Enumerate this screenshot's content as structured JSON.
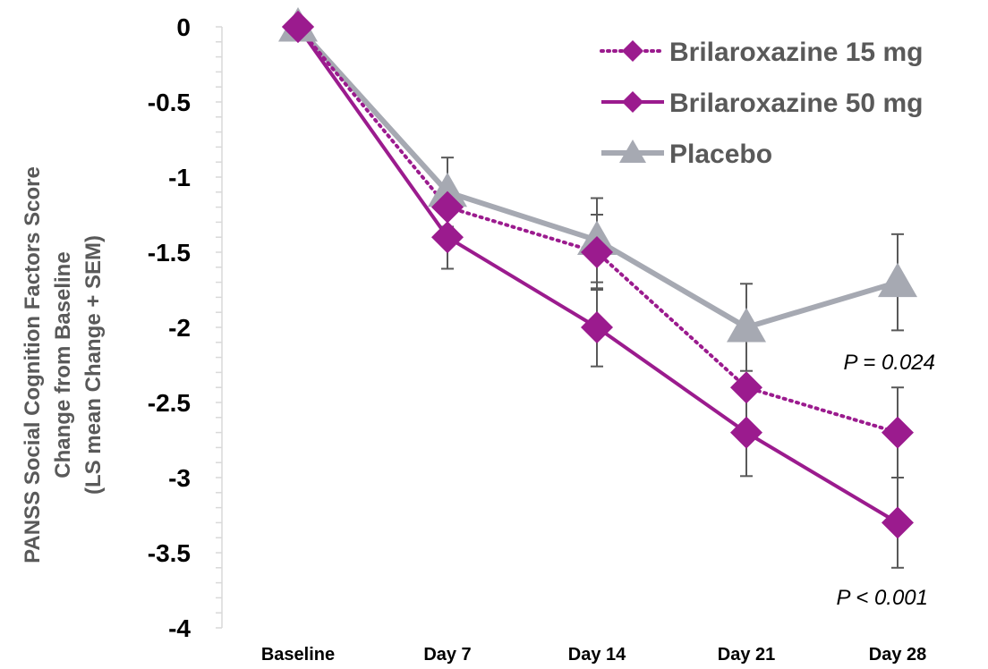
{
  "chart_data": {
    "type": "line",
    "title": "",
    "ylabel_lines": [
      "PANSS Social Cognition Factors Score",
      "Change from Baseline",
      "(LS mean Change + SEM)"
    ],
    "xlabel": "",
    "categories": [
      "Baseline",
      "Day 7",
      "Day 14",
      "Day 21",
      "Day 28"
    ],
    "ylim": [
      -4,
      0
    ],
    "yticks": [
      0,
      -0.5,
      -1,
      -1.5,
      -2,
      -2.5,
      -3,
      -3.5,
      -4
    ],
    "ytick_labels": [
      "0",
      "-0.5",
      "-1",
      "-1.5",
      "-2",
      "-2.5",
      "-3",
      "-3.5",
      "-4"
    ],
    "grid": false,
    "legend_position": "top-right",
    "series": [
      {
        "name": "Brilaroxazine 15 mg",
        "key": "b15",
        "color": "#9B1B8E",
        "line_style": "dotted",
        "marker": "diamond",
        "values": [
          0,
          -1.2,
          -1.5,
          -2.4,
          -2.7
        ],
        "error": [
          null,
          null,
          0.25,
          null,
          0.3
        ]
      },
      {
        "name": "Brilaroxazine 50 mg",
        "key": "b50",
        "color": "#9B1B8E",
        "line_style": "solid",
        "marker": "diamond",
        "values": [
          0,
          -1.4,
          -2.0,
          -2.7,
          -3.3
        ],
        "error": [
          null,
          0.21,
          0.26,
          0.29,
          0.3
        ]
      },
      {
        "name": "Placebo",
        "key": "pbo",
        "color": "#A6A9B2",
        "line_style": "solid",
        "marker": "triangle",
        "values": [
          0,
          -1.1,
          -1.42,
          -2.0,
          -1.7
        ],
        "error": [
          null,
          0.23,
          0.28,
          0.29,
          0.32
        ]
      }
    ],
    "annotations": [
      {
        "key": "p15",
        "text": "P = 0.024"
      },
      {
        "key": "p50",
        "text": "P < 0.001"
      }
    ]
  }
}
